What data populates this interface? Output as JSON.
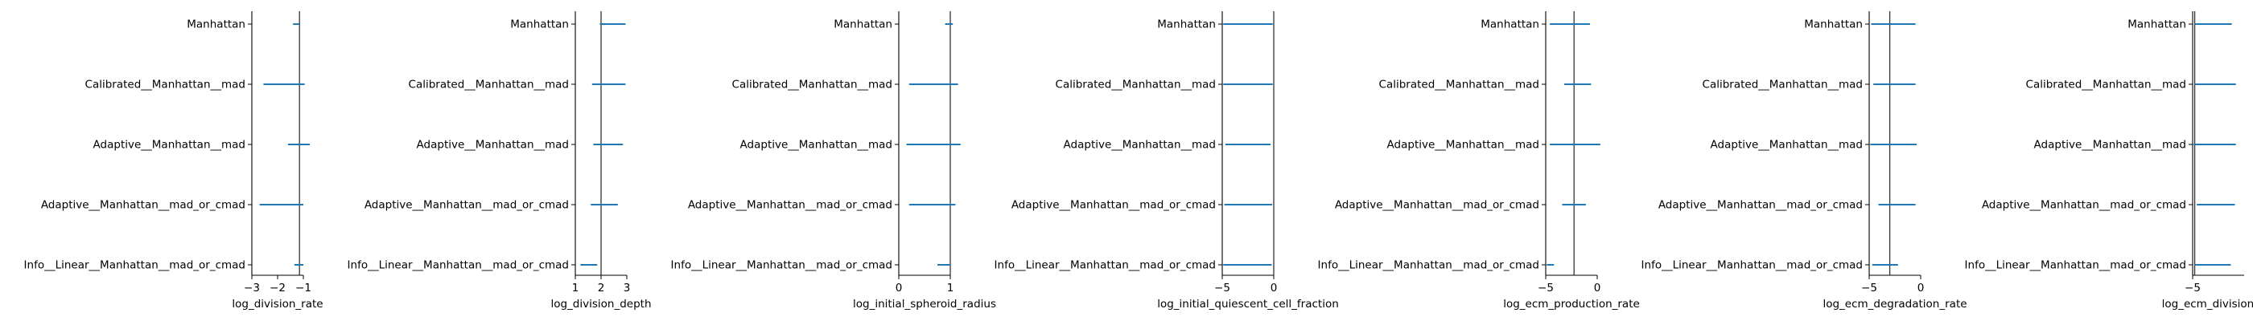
{
  "chart_data": [
    {
      "type": "interval",
      "categories": [
        "Manhattan",
        "Calibrated__Manhattan__mad",
        "Adaptive__Manhattan__mad",
        "Adaptive__Manhattan__mad_or_cmad",
        "Info__Linear__Manhattan__mad_or_cmad"
      ],
      "intervals": [
        [
          -1.4,
          -1.15
        ],
        [
          -2.55,
          -0.95
        ],
        [
          -1.6,
          -0.75
        ],
        [
          -2.7,
          -1.0
        ],
        [
          -1.35,
          -1.0
        ]
      ],
      "reference": -1.15,
      "xlim": [
        -3,
        -1
      ],
      "xticks": [
        -3,
        -2,
        -1
      ],
      "xtick_labels": [
        "−3",
        "−2",
        "−1"
      ],
      "xlabel": "log_division_rate",
      "series_color": "#1f77b4"
    },
    {
      "type": "interval",
      "categories": [
        "Manhattan",
        "Calibrated__Manhattan__mad",
        "Adaptive__Manhattan__mad",
        "Adaptive__Manhattan__mad_or_cmad",
        "Info__Linear__Manhattan__mad_or_cmad"
      ],
      "intervals": [
        [
          1.95,
          2.95
        ],
        [
          1.65,
          2.95
        ],
        [
          1.7,
          2.85
        ],
        [
          1.6,
          2.65
        ],
        [
          1.2,
          1.85
        ]
      ],
      "reference": 2.0,
      "xlim": [
        1,
        3
      ],
      "xticks": [
        1,
        2,
        3
      ],
      "xtick_labels": [
        "1",
        "2",
        "3"
      ],
      "xlabel": "log_division_depth",
      "series_color": "#1f77b4"
    },
    {
      "type": "interval",
      "categories": [
        "Manhattan",
        "Calibrated__Manhattan__mad",
        "Adaptive__Manhattan__mad",
        "Adaptive__Manhattan__mad_or_cmad",
        "Info__Linear__Manhattan__mad_or_cmad"
      ],
      "intervals": [
        [
          0.9,
          1.05
        ],
        [
          0.2,
          1.15
        ],
        [
          0.15,
          1.2
        ],
        [
          0.2,
          1.1
        ],
        [
          0.75,
          1.0
        ]
      ],
      "reference": 1.0,
      "xlim": [
        0,
        1
      ],
      "xticks": [
        0,
        1
      ],
      "xtick_labels": [
        "0",
        "1"
      ],
      "xlabel": "log_initial_spheroid_radius",
      "series_color": "#1f77b4"
    },
    {
      "type": "interval",
      "categories": [
        "Manhattan",
        "Calibrated__Manhattan__mad",
        "Adaptive__Manhattan__mad",
        "Adaptive__Manhattan__mad_or_cmad",
        "Info__Linear__Manhattan__mad_or_cmad"
      ],
      "intervals": [
        [
          -4.9,
          -0.1
        ],
        [
          -4.9,
          -0.1
        ],
        [
          -4.7,
          -0.3
        ],
        [
          -4.8,
          -0.15
        ],
        [
          -4.9,
          -0.2
        ]
      ],
      "reference": 0.0,
      "xlim": [
        -5,
        0
      ],
      "xticks": [
        -5,
        0
      ],
      "xtick_labels": [
        "−5",
        "0"
      ],
      "xlabel": "log_initial_quiescent_cell_fraction",
      "series_color": "#1f77b4"
    },
    {
      "type": "interval",
      "categories": [
        "Manhattan",
        "Calibrated__Manhattan__mad",
        "Adaptive__Manhattan__mad",
        "Adaptive__Manhattan__mad_or_cmad",
        "Info__Linear__Manhattan__mad_or_cmad"
      ],
      "intervals": [
        [
          -4.6,
          -0.7
        ],
        [
          -3.2,
          -0.6
        ],
        [
          -4.6,
          0.3
        ],
        [
          -3.4,
          -1.1
        ],
        [
          -4.9,
          -4.2
        ]
      ],
      "reference": -2.25,
      "xlim": [
        -5,
        0
      ],
      "xticks": [
        -5,
        0
      ],
      "xtick_labels": [
        "−5",
        "0"
      ],
      "xlabel": "log_ecm_production_rate",
      "series_color": "#1f77b4"
    },
    {
      "type": "interval",
      "categories": [
        "Manhattan",
        "Calibrated__Manhattan__mad",
        "Adaptive__Manhattan__mad",
        "Adaptive__Manhattan__mad_or_cmad",
        "Info__Linear__Manhattan__mad_or_cmad"
      ],
      "intervals": [
        [
          -4.8,
          -0.5
        ],
        [
          -4.6,
          -0.5
        ],
        [
          -4.9,
          -0.4
        ],
        [
          -4.1,
          -0.5
        ],
        [
          -4.7,
          -2.2
        ]
      ],
      "reference": -3.0,
      "xlim": [
        -5,
        0
      ],
      "xticks": [
        -5,
        0
      ],
      "xtick_labels": [
        "−5",
        "0"
      ],
      "xlabel": "log_ecm_degradation_rate",
      "series_color": "#1f77b4"
    },
    {
      "type": "interval",
      "categories": [
        "Manhattan",
        "Calibrated__Manhattan__mad",
        "Adaptive__Manhattan__mad",
        "Adaptive__Manhattan__mad_or_cmad",
        "Info__Linear__Manhattan__mad_or_cmad"
      ],
      "intervals": [
        [
          -4.8,
          -1.2
        ],
        [
          -4.8,
          -0.8
        ],
        [
          -4.9,
          -0.8
        ],
        [
          -4.6,
          -0.9
        ],
        [
          -4.8,
          -1.3
        ]
      ],
      "reference": -4.8,
      "xlim": [
        -5,
        0
      ],
      "xticks": [
        -5
      ],
      "xtick_labels": [
        "−5"
      ],
      "xlabel": "log_ecm_division_thr",
      "series_color": "#1f77b4"
    }
  ]
}
